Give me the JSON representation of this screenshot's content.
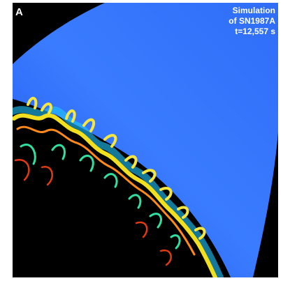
{
  "panel_label": "A",
  "caption": {
    "lines": [
      "Simulation",
      "of SN1987A",
      "t=12,557 s"
    ]
  }
}
